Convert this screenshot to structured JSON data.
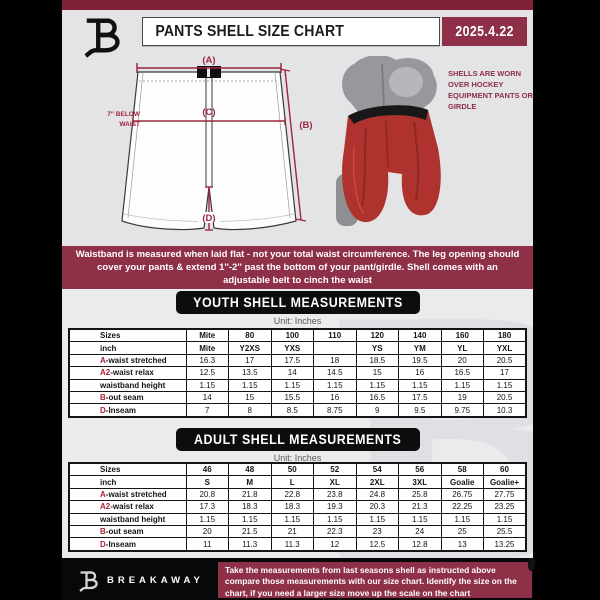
{
  "colors": {
    "maroon_banner": "#8e3048",
    "top_bar": "#7f2239",
    "diagram_line_red": "#9c2740",
    "table_letter_red": "#b11f31",
    "shell_red": "#ae322e",
    "banner_black": "#0d0d0d"
  },
  "icons": {
    "header_logo": "breakaway-b-logo",
    "footer_logo": "breakaway-b-logo",
    "pin": "pin-icon"
  },
  "header": {
    "title": "PANTS SHELL SIZE CHART",
    "date": "2025.4.22"
  },
  "diagram": {
    "label_a": "(A)",
    "label_b": "(B)",
    "label_c": "(C)",
    "label_d": "(D)",
    "waist_note_line1": "7'' BELOW",
    "waist_note_line2": "WAIST",
    "shell_note": "SHELLS ARE WORN OVER HOCKEY EQUIPMENT PANTS OR GIRDLE"
  },
  "notice": "Waistband is measured when laid flat - not your total waist circumference. The leg opening should cover your pants & extend 1''-2'' past the bottom of your pant/girdle. Shell comes with an adjustable belt to cinch the waist",
  "youth": {
    "title": "YOUTH SHELL MEASUREMENTS",
    "unit": "Unit: Inches",
    "rows": [
      {
        "prefix": "",
        "label": "Sizes",
        "header": true,
        "values": [
          "Mite",
          "80",
          "100",
          "110",
          "120",
          "140",
          "160",
          "180"
        ]
      },
      {
        "prefix": "",
        "label": "inch",
        "header": true,
        "values": [
          "Mite",
          "Y2XS",
          "YXS",
          "",
          "YS",
          "YM",
          "YL",
          "YXL"
        ]
      },
      {
        "prefix": "A",
        "label": "-waist stretched",
        "header": false,
        "values": [
          "16.3",
          "17",
          "17.5",
          "18",
          "18.5",
          "19.5",
          "20",
          "20.5"
        ]
      },
      {
        "prefix": "A2",
        "label": "-waist relax",
        "header": false,
        "values": [
          "12.5",
          "13.5",
          "14",
          "14.5",
          "15",
          "16",
          "16.5",
          "17"
        ]
      },
      {
        "prefix": "",
        "label": "waistband height",
        "header": false,
        "values": [
          "1.15",
          "1.15",
          "1.15",
          "1.15",
          "1.15",
          "1.15",
          "1.15",
          "1.15"
        ]
      },
      {
        "prefix": "B",
        "label": "-out seam",
        "header": false,
        "values": [
          "14",
          "15",
          "15.5",
          "16",
          "16.5",
          "17.5",
          "19",
          "20.5"
        ]
      },
      {
        "prefix": "D",
        "label": "-Inseam",
        "header": false,
        "values": [
          "7",
          "8",
          "8.5",
          "8.75",
          "9",
          "9.5",
          "9.75",
          "10.3"
        ]
      }
    ]
  },
  "adult": {
    "title": "ADULT SHELL MEASUREMENTS",
    "unit": "Unit: Inches",
    "rows": [
      {
        "prefix": "",
        "label": "Sizes",
        "header": true,
        "values": [
          "46",
          "48",
          "50",
          "52",
          "54",
          "56",
          "58",
          "60"
        ]
      },
      {
        "prefix": "",
        "label": "inch",
        "header": true,
        "values": [
          "S",
          "M",
          "L",
          "XL",
          "2XL",
          "3XL",
          "Goalie",
          "Goalie+"
        ]
      },
      {
        "prefix": "A",
        "label": "-waist stretched",
        "header": false,
        "values": [
          "20.8",
          "21.8",
          "22.8",
          "23.8",
          "24.8",
          "25.8",
          "26.75",
          "27.75"
        ]
      },
      {
        "prefix": "A2",
        "label": "-waist relax",
        "header": false,
        "values": [
          "17.3",
          "18.3",
          "18.3",
          "19.3",
          "20.3",
          "21.3",
          "22.25",
          "23.25"
        ]
      },
      {
        "prefix": "",
        "label": "waistband height",
        "header": false,
        "values": [
          "1.15",
          "1.15",
          "1.15",
          "1.15",
          "1.15",
          "1.15",
          "1.15",
          "1.15"
        ]
      },
      {
        "prefix": "B",
        "label": "-out seam",
        "header": false,
        "values": [
          "20",
          "21.5",
          "21",
          "22.3",
          "23",
          "24",
          "25",
          "25.5"
        ]
      },
      {
        "prefix": "D",
        "label": "-Inseam",
        "header": false,
        "values": [
          "11",
          "11.3",
          "11.3",
          "12",
          "12.5",
          "12.8",
          "13",
          "13.25"
        ]
      }
    ]
  },
  "footer": {
    "brand": "BREAKAWAY",
    "note": "Take the measurements from last seasons shell as instructed above compare those measurements  with our size chart. Identify the size on the chart, if you need a larger size move up the scale on the chart"
  }
}
